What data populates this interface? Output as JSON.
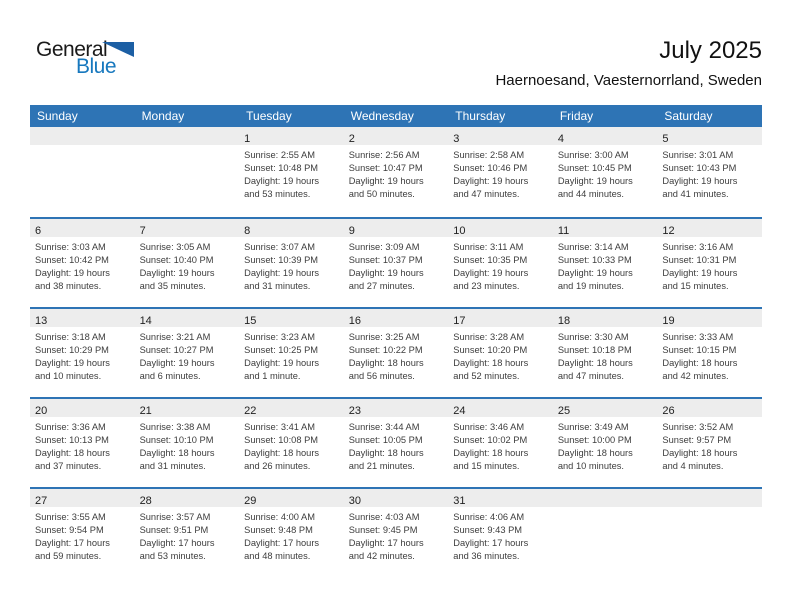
{
  "logo": {
    "part1": "General",
    "part2": "Blue",
    "triangle_icon": "flag-triangle-icon",
    "colors": {
      "part1": "#1a1a1a",
      "part2": "#1778be",
      "triangle": "#1c5fa4"
    }
  },
  "header": {
    "title": "July 2025",
    "subtitle": "Haernoesand, Vaesternorrland, Sweden"
  },
  "calendar": {
    "accent_color": "#2E74B5",
    "band_color": "#EDEDED",
    "weekday_headers": [
      "Sunday",
      "Monday",
      "Tuesday",
      "Wednesday",
      "Thursday",
      "Friday",
      "Saturday"
    ],
    "weeks": [
      [
        null,
        null,
        {
          "day": "1",
          "sunrise": "Sunrise: 2:55 AM",
          "sunset": "Sunset: 10:48 PM",
          "daylight": "Daylight: 19 hours and 53 minutes."
        },
        {
          "day": "2",
          "sunrise": "Sunrise: 2:56 AM",
          "sunset": "Sunset: 10:47 PM",
          "daylight": "Daylight: 19 hours and 50 minutes."
        },
        {
          "day": "3",
          "sunrise": "Sunrise: 2:58 AM",
          "sunset": "Sunset: 10:46 PM",
          "daylight": "Daylight: 19 hours and 47 minutes."
        },
        {
          "day": "4",
          "sunrise": "Sunrise: 3:00 AM",
          "sunset": "Sunset: 10:45 PM",
          "daylight": "Daylight: 19 hours and 44 minutes."
        },
        {
          "day": "5",
          "sunrise": "Sunrise: 3:01 AM",
          "sunset": "Sunset: 10:43 PM",
          "daylight": "Daylight: 19 hours and 41 minutes."
        }
      ],
      [
        {
          "day": "6",
          "sunrise": "Sunrise: 3:03 AM",
          "sunset": "Sunset: 10:42 PM",
          "daylight": "Daylight: 19 hours and 38 minutes."
        },
        {
          "day": "7",
          "sunrise": "Sunrise: 3:05 AM",
          "sunset": "Sunset: 10:40 PM",
          "daylight": "Daylight: 19 hours and 35 minutes."
        },
        {
          "day": "8",
          "sunrise": "Sunrise: 3:07 AM",
          "sunset": "Sunset: 10:39 PM",
          "daylight": "Daylight: 19 hours and 31 minutes."
        },
        {
          "day": "9",
          "sunrise": "Sunrise: 3:09 AM",
          "sunset": "Sunset: 10:37 PM",
          "daylight": "Daylight: 19 hours and 27 minutes."
        },
        {
          "day": "10",
          "sunrise": "Sunrise: 3:11 AM",
          "sunset": "Sunset: 10:35 PM",
          "daylight": "Daylight: 19 hours and 23 minutes."
        },
        {
          "day": "11",
          "sunrise": "Sunrise: 3:14 AM",
          "sunset": "Sunset: 10:33 PM",
          "daylight": "Daylight: 19 hours and 19 minutes."
        },
        {
          "day": "12",
          "sunrise": "Sunrise: 3:16 AM",
          "sunset": "Sunset: 10:31 PM",
          "daylight": "Daylight: 19 hours and 15 minutes."
        }
      ],
      [
        {
          "day": "13",
          "sunrise": "Sunrise: 3:18 AM",
          "sunset": "Sunset: 10:29 PM",
          "daylight": "Daylight: 19 hours and 10 minutes."
        },
        {
          "day": "14",
          "sunrise": "Sunrise: 3:21 AM",
          "sunset": "Sunset: 10:27 PM",
          "daylight": "Daylight: 19 hours and 6 minutes."
        },
        {
          "day": "15",
          "sunrise": "Sunrise: 3:23 AM",
          "sunset": "Sunset: 10:25 PM",
          "daylight": "Daylight: 19 hours and 1 minute."
        },
        {
          "day": "16",
          "sunrise": "Sunrise: 3:25 AM",
          "sunset": "Sunset: 10:22 PM",
          "daylight": "Daylight: 18 hours and 56 minutes."
        },
        {
          "day": "17",
          "sunrise": "Sunrise: 3:28 AM",
          "sunset": "Sunset: 10:20 PM",
          "daylight": "Daylight: 18 hours and 52 minutes."
        },
        {
          "day": "18",
          "sunrise": "Sunrise: 3:30 AM",
          "sunset": "Sunset: 10:18 PM",
          "daylight": "Daylight: 18 hours and 47 minutes."
        },
        {
          "day": "19",
          "sunrise": "Sunrise: 3:33 AM",
          "sunset": "Sunset: 10:15 PM",
          "daylight": "Daylight: 18 hours and 42 minutes."
        }
      ],
      [
        {
          "day": "20",
          "sunrise": "Sunrise: 3:36 AM",
          "sunset": "Sunset: 10:13 PM",
          "daylight": "Daylight: 18 hours and 37 minutes."
        },
        {
          "day": "21",
          "sunrise": "Sunrise: 3:38 AM",
          "sunset": "Sunset: 10:10 PM",
          "daylight": "Daylight: 18 hours and 31 minutes."
        },
        {
          "day": "22",
          "sunrise": "Sunrise: 3:41 AM",
          "sunset": "Sunset: 10:08 PM",
          "daylight": "Daylight: 18 hours and 26 minutes."
        },
        {
          "day": "23",
          "sunrise": "Sunrise: 3:44 AM",
          "sunset": "Sunset: 10:05 PM",
          "daylight": "Daylight: 18 hours and 21 minutes."
        },
        {
          "day": "24",
          "sunrise": "Sunrise: 3:46 AM",
          "sunset": "Sunset: 10:02 PM",
          "daylight": "Daylight: 18 hours and 15 minutes."
        },
        {
          "day": "25",
          "sunrise": "Sunrise: 3:49 AM",
          "sunset": "Sunset: 10:00 PM",
          "daylight": "Daylight: 18 hours and 10 minutes."
        },
        {
          "day": "26",
          "sunrise": "Sunrise: 3:52 AM",
          "sunset": "Sunset: 9:57 PM",
          "daylight": "Daylight: 18 hours and 4 minutes."
        }
      ],
      [
        {
          "day": "27",
          "sunrise": "Sunrise: 3:55 AM",
          "sunset": "Sunset: 9:54 PM",
          "daylight": "Daylight: 17 hours and 59 minutes."
        },
        {
          "day": "28",
          "sunrise": "Sunrise: 3:57 AM",
          "sunset": "Sunset: 9:51 PM",
          "daylight": "Daylight: 17 hours and 53 minutes."
        },
        {
          "day": "29",
          "sunrise": "Sunrise: 4:00 AM",
          "sunset": "Sunset: 9:48 PM",
          "daylight": "Daylight: 17 hours and 48 minutes."
        },
        {
          "day": "30",
          "sunrise": "Sunrise: 4:03 AM",
          "sunset": "Sunset: 9:45 PM",
          "daylight": "Daylight: 17 hours and 42 minutes."
        },
        {
          "day": "31",
          "sunrise": "Sunrise: 4:06 AM",
          "sunset": "Sunset: 9:43 PM",
          "daylight": "Daylight: 17 hours and 36 minutes."
        },
        null,
        null
      ]
    ]
  }
}
